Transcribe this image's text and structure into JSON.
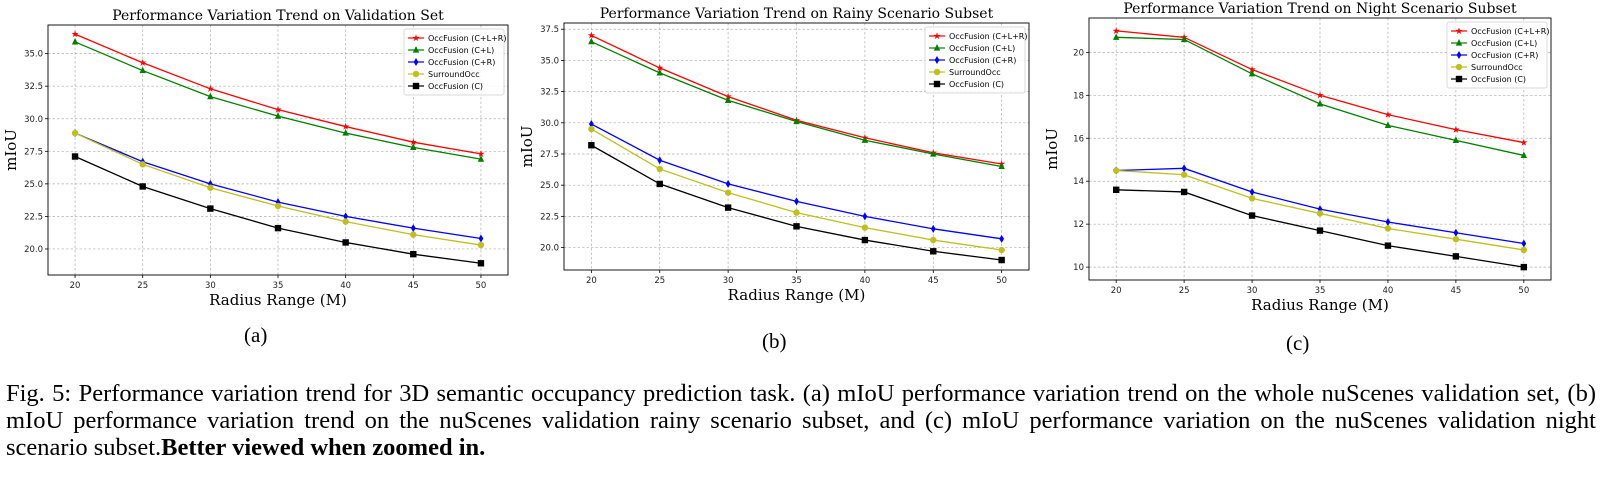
{
  "chart_data": [
    {
      "type": "line",
      "id": "a",
      "title": "Performance Variation Trend on Validation Set",
      "xlabel": "Radius Range (M)",
      "ylabel": "mIoU",
      "x": [
        20,
        25,
        30,
        35,
        40,
        45,
        50
      ],
      "xlim": [
        18,
        52
      ],
      "ylim": [
        18.0,
        37.2
      ],
      "yticks": [
        20.0,
        22.5,
        25.0,
        27.5,
        30.0,
        32.5,
        35.0
      ],
      "ytick_labels": [
        "20.0",
        "22.5",
        "25.0",
        "27.5",
        "30.0",
        "32.5",
        "35.0"
      ],
      "grid": true,
      "legend_position": "top-right",
      "series": [
        {
          "name": "OccFusion (C+L+R)",
          "color": "#ff0000",
          "marker": "star",
          "values": [
            36.5,
            34.3,
            32.3,
            30.7,
            29.4,
            28.2,
            27.3
          ]
        },
        {
          "name": "OccFusion (C+L)",
          "color": "#008000",
          "marker": "triangle",
          "values": [
            35.9,
            33.7,
            31.7,
            30.2,
            28.9,
            27.8,
            26.9
          ]
        },
        {
          "name": "OccFusion (C+R)",
          "color": "#0000ff",
          "marker": "diamond",
          "values": [
            28.9,
            26.7,
            25.0,
            23.6,
            22.5,
            21.6,
            20.8
          ]
        },
        {
          "name": "SurroundOcc",
          "color": "#bfbf20",
          "marker": "circle",
          "values": [
            28.9,
            26.5,
            24.7,
            23.3,
            22.1,
            21.1,
            20.3
          ]
        },
        {
          "name": "OccFusion (C)",
          "color": "#000000",
          "marker": "square",
          "values": [
            27.1,
            24.8,
            23.1,
            21.6,
            20.5,
            19.6,
            18.9
          ]
        }
      ]
    },
    {
      "type": "line",
      "id": "b",
      "title": "Performance Variation Trend on Rainy Scenario Subset",
      "xlabel": "Radius Range (M)",
      "ylabel": "mIoU",
      "x": [
        20,
        25,
        30,
        35,
        40,
        45,
        50
      ],
      "xlim": [
        18,
        52
      ],
      "ylim": [
        18.2,
        38.0
      ],
      "yticks": [
        20.0,
        22.5,
        25.0,
        27.5,
        30.0,
        32.5,
        35.0,
        37.5
      ],
      "ytick_labels": [
        "20.0",
        "22.5",
        "25.0",
        "27.5",
        "30.0",
        "32.5",
        "35.0",
        "37.5"
      ],
      "grid": true,
      "legend_position": "top-right",
      "series": [
        {
          "name": "OccFusion (C+L+R)",
          "color": "#ff0000",
          "marker": "star",
          "values": [
            37.0,
            34.4,
            32.1,
            30.2,
            28.8,
            27.6,
            26.7
          ]
        },
        {
          "name": "OccFusion (C+L)",
          "color": "#008000",
          "marker": "triangle",
          "values": [
            36.5,
            34.0,
            31.8,
            30.1,
            28.6,
            27.5,
            26.5
          ]
        },
        {
          "name": "OccFusion (C+R)",
          "color": "#0000ff",
          "marker": "diamond",
          "values": [
            29.9,
            27.0,
            25.1,
            23.7,
            22.5,
            21.5,
            20.7
          ]
        },
        {
          "name": "SurroundOcc",
          "color": "#bfbf20",
          "marker": "circle",
          "values": [
            29.5,
            26.3,
            24.4,
            22.8,
            21.6,
            20.6,
            19.8
          ]
        },
        {
          "name": "OccFusion (C)",
          "color": "#000000",
          "marker": "square",
          "values": [
            28.2,
            25.1,
            23.2,
            21.7,
            20.6,
            19.7,
            19.0
          ]
        }
      ]
    },
    {
      "type": "line",
      "id": "c",
      "title": "Performance Variation Trend on Night Scenario Subset",
      "xlabel": "Radius Range (M)",
      "ylabel": "mIoU",
      "x": [
        20,
        25,
        30,
        35,
        40,
        45,
        50
      ],
      "xlim": [
        18,
        52
      ],
      "ylim": [
        9.4,
        21.6
      ],
      "yticks": [
        10,
        12,
        14,
        16,
        18,
        20
      ],
      "ytick_labels": [
        "10",
        "12",
        "14",
        "16",
        "18",
        "20"
      ],
      "grid": true,
      "legend_position": "top-right",
      "series": [
        {
          "name": "OccFusion (C+L+R)",
          "color": "#ff0000",
          "marker": "star",
          "values": [
            21.0,
            20.7,
            19.2,
            18.0,
            17.1,
            16.4,
            15.8
          ]
        },
        {
          "name": "OccFusion (C+L)",
          "color": "#008000",
          "marker": "triangle",
          "values": [
            20.7,
            20.6,
            19.0,
            17.6,
            16.6,
            15.9,
            15.2
          ]
        },
        {
          "name": "OccFusion (C+R)",
          "color": "#0000ff",
          "marker": "diamond",
          "values": [
            14.5,
            14.6,
            13.5,
            12.7,
            12.1,
            11.6,
            11.1
          ]
        },
        {
          "name": "SurroundOcc",
          "color": "#bfbf20",
          "marker": "circle",
          "values": [
            14.5,
            14.3,
            13.2,
            12.5,
            11.8,
            11.3,
            10.8
          ]
        },
        {
          "name": "OccFusion (C)",
          "color": "#000000",
          "marker": "square",
          "values": [
            13.6,
            13.5,
            12.4,
            11.7,
            11.0,
            10.5,
            10.0
          ]
        }
      ]
    }
  ],
  "sublabels": [
    "(a)",
    "(b)",
    "(c)"
  ],
  "caption": {
    "prefix": "Fig. 5:",
    "text": " Performance variation trend for 3D semantic occupancy prediction task. (a) mIoU performance variation trend on the whole nuScenes validation set, (b) mIoU performance variation trend on the nuScenes validation rainy scenario subset, and (c) mIoU performance variation on the nuScenes validation night scenario subset.",
    "bold": "Better viewed when zoomed in."
  }
}
